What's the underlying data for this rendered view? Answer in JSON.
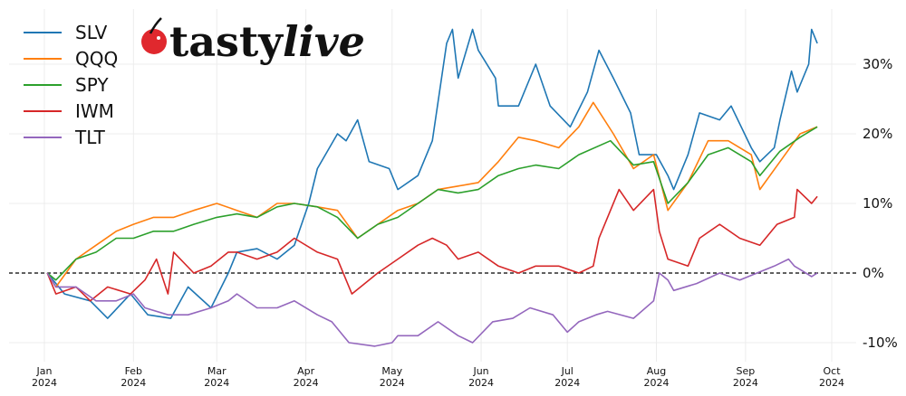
{
  "logo": {
    "text_a": "tasty",
    "text_b": "live",
    "cherry_color": "#e0282e"
  },
  "chart_data": {
    "type": "line",
    "title": "",
    "xlabel": "",
    "ylabel": "",
    "ylim": [
      -13,
      38
    ],
    "xlim": [
      "2023-12-24",
      "2024-10-05"
    ],
    "grid": true,
    "legend_position": "top-left",
    "y_axis_side": "right",
    "reference_line": {
      "y": 0,
      "style": "dashed",
      "color": "#000000"
    },
    "y_ticks": [
      {
        "value": 30,
        "label": "30%"
      },
      {
        "value": 20,
        "label": "20%"
      },
      {
        "value": 10,
        "label": "10%"
      },
      {
        "value": 0,
        "label": "0%"
      },
      {
        "value": -10,
        "label": "-10%"
      }
    ],
    "x_ticks": [
      {
        "date": "2024-01-01",
        "month": "Jan",
        "year": "2024"
      },
      {
        "date": "2024-02-01",
        "month": "Feb",
        "year": "2024"
      },
      {
        "date": "2024-03-01",
        "month": "Mar",
        "year": "2024"
      },
      {
        "date": "2024-04-01",
        "month": "Apr",
        "year": "2024"
      },
      {
        "date": "2024-05-01",
        "month": "May",
        "year": "2024"
      },
      {
        "date": "2024-06-01",
        "month": "Jun",
        "year": "2024"
      },
      {
        "date": "2024-07-01",
        "month": "Jul",
        "year": "2024"
      },
      {
        "date": "2024-08-01",
        "month": "Aug",
        "year": "2024"
      },
      {
        "date": "2024-09-01",
        "month": "Sep",
        "year": "2024"
      },
      {
        "date": "2024-10-01",
        "month": "Oct",
        "year": "2024"
      }
    ],
    "series": [
      {
        "name": "SLV",
        "color": "#1f77b4",
        "points": [
          [
            "2024-01-02",
            0
          ],
          [
            "2024-01-08",
            -3
          ],
          [
            "2024-01-17",
            -4
          ],
          [
            "2024-01-23",
            -6.5
          ],
          [
            "2024-01-31",
            -3
          ],
          [
            "2024-02-06",
            -6
          ],
          [
            "2024-02-14",
            -6.5
          ],
          [
            "2024-02-20",
            -2
          ],
          [
            "2024-02-28",
            -5
          ],
          [
            "2024-03-05",
            0
          ],
          [
            "2024-03-08",
            3
          ],
          [
            "2024-03-15",
            3.5
          ],
          [
            "2024-03-22",
            2
          ],
          [
            "2024-03-28",
            4
          ],
          [
            "2024-04-02",
            10
          ],
          [
            "2024-04-05",
            15
          ],
          [
            "2024-04-12",
            20
          ],
          [
            "2024-04-15",
            19
          ],
          [
            "2024-04-19",
            22
          ],
          [
            "2024-04-23",
            16
          ],
          [
            "2024-04-30",
            15
          ],
          [
            "2024-05-03",
            12
          ],
          [
            "2024-05-10",
            14
          ],
          [
            "2024-05-15",
            19
          ],
          [
            "2024-05-20",
            33
          ],
          [
            "2024-05-22",
            35
          ],
          [
            "2024-05-24",
            28
          ],
          [
            "2024-05-29",
            35
          ],
          [
            "2024-05-31",
            32
          ],
          [
            "2024-06-06",
            28
          ],
          [
            "2024-06-07",
            24
          ],
          [
            "2024-06-14",
            24
          ],
          [
            "2024-06-20",
            30
          ],
          [
            "2024-06-25",
            24
          ],
          [
            "2024-07-02",
            21
          ],
          [
            "2024-07-08",
            26
          ],
          [
            "2024-07-12",
            32
          ],
          [
            "2024-07-17",
            28
          ],
          [
            "2024-07-23",
            23
          ],
          [
            "2024-07-26",
            17
          ],
          [
            "2024-08-01",
            17
          ],
          [
            "2024-08-05",
            14
          ],
          [
            "2024-08-07",
            12
          ],
          [
            "2024-08-12",
            17
          ],
          [
            "2024-08-16",
            23
          ],
          [
            "2024-08-23",
            22
          ],
          [
            "2024-08-27",
            24
          ],
          [
            "2024-09-03",
            18
          ],
          [
            "2024-09-06",
            16
          ],
          [
            "2024-09-11",
            18
          ],
          [
            "2024-09-13",
            22
          ],
          [
            "2024-09-17",
            29
          ],
          [
            "2024-09-19",
            26
          ],
          [
            "2024-09-23",
            30
          ],
          [
            "2024-09-24",
            35
          ],
          [
            "2024-09-26",
            33
          ]
        ]
      },
      {
        "name": "QQQ",
        "color": "#ff7f0e",
        "points": [
          [
            "2024-01-02",
            0
          ],
          [
            "2024-01-05",
            -2
          ],
          [
            "2024-01-12",
            2
          ],
          [
            "2024-01-19",
            4
          ],
          [
            "2024-01-26",
            6
          ],
          [
            "2024-02-01",
            7
          ],
          [
            "2024-02-08",
            8
          ],
          [
            "2024-02-15",
            8
          ],
          [
            "2024-02-22",
            9
          ],
          [
            "2024-03-01",
            10
          ],
          [
            "2024-03-08",
            9
          ],
          [
            "2024-03-15",
            8
          ],
          [
            "2024-03-22",
            10
          ],
          [
            "2024-03-28",
            10
          ],
          [
            "2024-04-05",
            9.5
          ],
          [
            "2024-04-12",
            9
          ],
          [
            "2024-04-19",
            5
          ],
          [
            "2024-04-26",
            7
          ],
          [
            "2024-05-03",
            9
          ],
          [
            "2024-05-10",
            10
          ],
          [
            "2024-05-17",
            12
          ],
          [
            "2024-05-24",
            12.5
          ],
          [
            "2024-05-31",
            13
          ],
          [
            "2024-06-07",
            16
          ],
          [
            "2024-06-14",
            19.5
          ],
          [
            "2024-06-20",
            19
          ],
          [
            "2024-06-28",
            18
          ],
          [
            "2024-07-05",
            21
          ],
          [
            "2024-07-10",
            24.5
          ],
          [
            "2024-07-17",
            20
          ],
          [
            "2024-07-24",
            15
          ],
          [
            "2024-07-31",
            17
          ],
          [
            "2024-08-05",
            9
          ],
          [
            "2024-08-12",
            13
          ],
          [
            "2024-08-19",
            19
          ],
          [
            "2024-08-26",
            19
          ],
          [
            "2024-09-03",
            17
          ],
          [
            "2024-09-06",
            12
          ],
          [
            "2024-09-13",
            16
          ],
          [
            "2024-09-20",
            20
          ],
          [
            "2024-09-26",
            21
          ]
        ]
      },
      {
        "name": "SPY",
        "color": "#2ca02c",
        "points": [
          [
            "2024-01-02",
            0
          ],
          [
            "2024-01-05",
            -1
          ],
          [
            "2024-01-12",
            2
          ],
          [
            "2024-01-19",
            3
          ],
          [
            "2024-01-26",
            5
          ],
          [
            "2024-02-01",
            5
          ],
          [
            "2024-02-08",
            6
          ],
          [
            "2024-02-15",
            6
          ],
          [
            "2024-02-22",
            7
          ],
          [
            "2024-03-01",
            8
          ],
          [
            "2024-03-08",
            8.5
          ],
          [
            "2024-03-15",
            8
          ],
          [
            "2024-03-22",
            9.5
          ],
          [
            "2024-03-28",
            10
          ],
          [
            "2024-04-05",
            9.5
          ],
          [
            "2024-04-12",
            8
          ],
          [
            "2024-04-19",
            5
          ],
          [
            "2024-04-26",
            7
          ],
          [
            "2024-05-03",
            8
          ],
          [
            "2024-05-10",
            10
          ],
          [
            "2024-05-17",
            12
          ],
          [
            "2024-05-24",
            11.5
          ],
          [
            "2024-05-31",
            12
          ],
          [
            "2024-06-07",
            14
          ],
          [
            "2024-06-14",
            15
          ],
          [
            "2024-06-20",
            15.5
          ],
          [
            "2024-06-28",
            15
          ],
          [
            "2024-07-05",
            17
          ],
          [
            "2024-07-16",
            19
          ],
          [
            "2024-07-24",
            15.5
          ],
          [
            "2024-07-31",
            16
          ],
          [
            "2024-08-05",
            10
          ],
          [
            "2024-08-12",
            13
          ],
          [
            "2024-08-19",
            17
          ],
          [
            "2024-08-26",
            18
          ],
          [
            "2024-09-03",
            16
          ],
          [
            "2024-09-06",
            14
          ],
          [
            "2024-09-13",
            17.5
          ],
          [
            "2024-09-20",
            19.5
          ],
          [
            "2024-09-26",
            21
          ]
        ]
      },
      {
        "name": "IWM",
        "color": "#d62728",
        "points": [
          [
            "2024-01-02",
            0
          ],
          [
            "2024-01-05",
            -3
          ],
          [
            "2024-01-12",
            -2
          ],
          [
            "2024-01-17",
            -4
          ],
          [
            "2024-01-23",
            -2
          ],
          [
            "2024-01-31",
            -3
          ],
          [
            "2024-02-05",
            -1
          ],
          [
            "2024-02-09",
            2
          ],
          [
            "2024-02-13",
            -3
          ],
          [
            "2024-02-15",
            3
          ],
          [
            "2024-02-22",
            0
          ],
          [
            "2024-02-28",
            1
          ],
          [
            "2024-03-05",
            3
          ],
          [
            "2024-03-08",
            3
          ],
          [
            "2024-03-15",
            2
          ],
          [
            "2024-03-22",
            3
          ],
          [
            "2024-03-28",
            5
          ],
          [
            "2024-04-05",
            3
          ],
          [
            "2024-04-12",
            2
          ],
          [
            "2024-04-17",
            -3
          ],
          [
            "2024-04-26",
            0
          ],
          [
            "2024-05-03",
            2
          ],
          [
            "2024-05-10",
            4
          ],
          [
            "2024-05-15",
            5
          ],
          [
            "2024-05-20",
            4
          ],
          [
            "2024-05-24",
            2
          ],
          [
            "2024-05-31",
            3
          ],
          [
            "2024-06-07",
            1
          ],
          [
            "2024-06-14",
            0
          ],
          [
            "2024-06-20",
            1
          ],
          [
            "2024-06-28",
            1
          ],
          [
            "2024-07-05",
            0
          ],
          [
            "2024-07-10",
            1
          ],
          [
            "2024-07-12",
            5
          ],
          [
            "2024-07-16",
            9
          ],
          [
            "2024-07-19",
            12
          ],
          [
            "2024-07-24",
            9
          ],
          [
            "2024-07-31",
            12
          ],
          [
            "2024-08-02",
            6
          ],
          [
            "2024-08-05",
            2
          ],
          [
            "2024-08-12",
            1
          ],
          [
            "2024-08-16",
            5
          ],
          [
            "2024-08-23",
            7
          ],
          [
            "2024-08-30",
            5
          ],
          [
            "2024-09-06",
            4
          ],
          [
            "2024-09-12",
            7
          ],
          [
            "2024-09-18",
            8
          ],
          [
            "2024-09-19",
            12
          ],
          [
            "2024-09-24",
            10
          ],
          [
            "2024-09-26",
            11
          ]
        ]
      },
      {
        "name": "TLT",
        "color": "#9467bd",
        "points": [
          [
            "2024-01-02",
            0
          ],
          [
            "2024-01-05",
            -2
          ],
          [
            "2024-01-12",
            -2
          ],
          [
            "2024-01-19",
            -4
          ],
          [
            "2024-01-26",
            -4
          ],
          [
            "2024-02-01",
            -3
          ],
          [
            "2024-02-05",
            -5
          ],
          [
            "2024-02-13",
            -6
          ],
          [
            "2024-02-20",
            -6
          ],
          [
            "2024-02-28",
            -5
          ],
          [
            "2024-03-05",
            -4
          ],
          [
            "2024-03-08",
            -3
          ],
          [
            "2024-03-15",
            -5
          ],
          [
            "2024-03-22",
            -5
          ],
          [
            "2024-03-28",
            -4
          ],
          [
            "2024-04-05",
            -6
          ],
          [
            "2024-04-10",
            -7
          ],
          [
            "2024-04-16",
            -10
          ],
          [
            "2024-04-25",
            -10.5
          ],
          [
            "2024-05-01",
            -10
          ],
          [
            "2024-05-03",
            -9
          ],
          [
            "2024-05-10",
            -9
          ],
          [
            "2024-05-17",
            -7
          ],
          [
            "2024-05-24",
            -9
          ],
          [
            "2024-05-29",
            -10
          ],
          [
            "2024-06-05",
            -7
          ],
          [
            "2024-06-12",
            -6.5
          ],
          [
            "2024-06-18",
            -5
          ],
          [
            "2024-06-26",
            -6
          ],
          [
            "2024-07-01",
            -8.5
          ],
          [
            "2024-07-05",
            -7
          ],
          [
            "2024-07-11",
            -6
          ],
          [
            "2024-07-15",
            -5.5
          ],
          [
            "2024-07-24",
            -6.5
          ],
          [
            "2024-07-31",
            -4
          ],
          [
            "2024-08-02",
            0
          ],
          [
            "2024-08-05",
            -1
          ],
          [
            "2024-08-07",
            -2.5
          ],
          [
            "2024-08-15",
            -1.5
          ],
          [
            "2024-08-23",
            0
          ],
          [
            "2024-08-30",
            -1
          ],
          [
            "2024-09-05",
            0
          ],
          [
            "2024-09-11",
            1
          ],
          [
            "2024-09-16",
            2
          ],
          [
            "2024-09-18",
            1
          ],
          [
            "2024-09-20",
            0.5
          ],
          [
            "2024-09-24",
            -0.5
          ],
          [
            "2024-09-26",
            0
          ]
        ]
      }
    ]
  }
}
